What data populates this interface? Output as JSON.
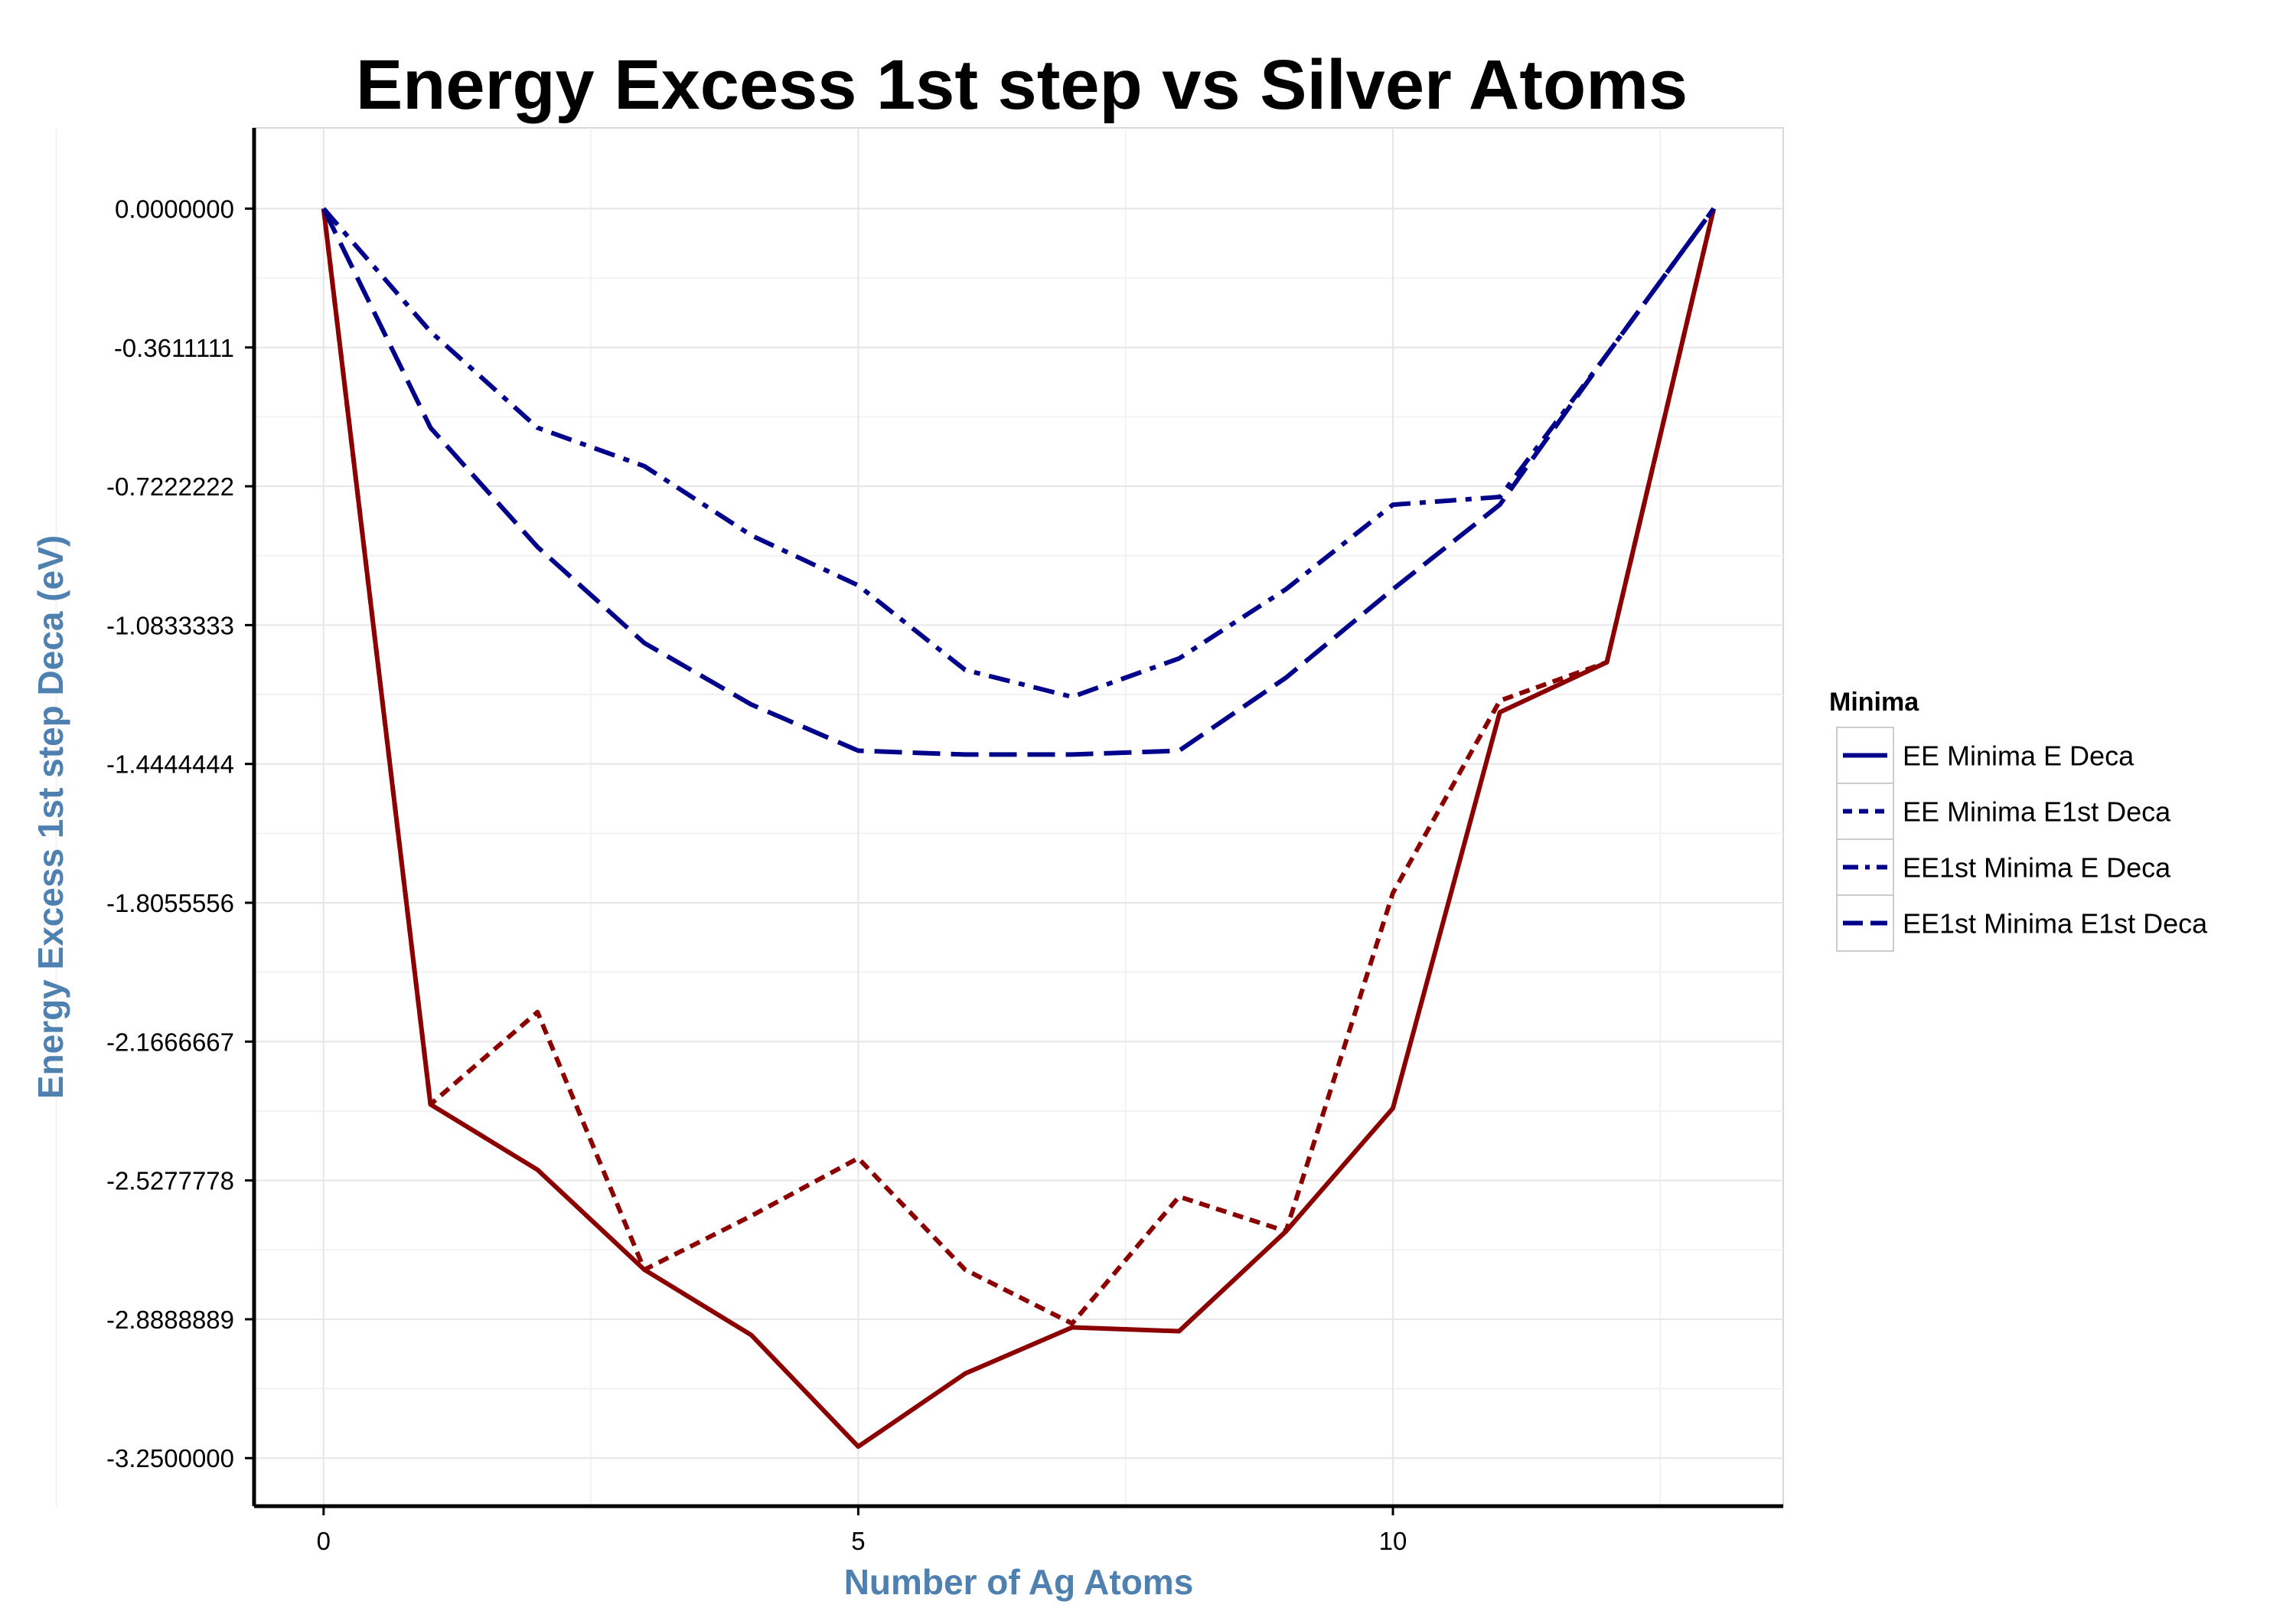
{
  "chart_data": {
    "type": "line",
    "title": "Energy Excess 1st step vs Silver Atoms",
    "xlabel": "Number of Ag Atoms",
    "ylabel": "Energy Excess 1st step Deca (eV)",
    "xlim": [
      -0.65,
      13.65
    ],
    "ylim": [
      -3.375,
      0.21
    ],
    "x_ticks": [
      0,
      5,
      10
    ],
    "x_tick_labels": [
      "0",
      "5",
      "10"
    ],
    "y_ticks": [
      0,
      -0.3611111,
      -0.7222222,
      -1.0833333,
      -1.4444444,
      -1.8055556,
      -2.1666667,
      -2.5277778,
      -2.8888889,
      -3.25
    ],
    "y_tick_labels": [
      "0.0000000",
      "-0.3611111",
      "-0.7222222",
      "-1.0833333",
      "-1.4444444",
      "-1.8055556",
      "-2.1666667",
      "-2.5277778",
      "-2.8888889",
      "-3.2500000"
    ],
    "grid": true,
    "legend_title": "Minima",
    "legend_position": "right",
    "x": [
      0,
      1,
      2,
      3,
      4,
      5,
      6,
      7,
      8,
      9,
      10,
      11,
      12,
      13
    ],
    "series": [
      {
        "name": "EE Minima E Deca",
        "color": "#8B0000",
        "dash": "solid",
        "values": [
          0,
          -2.33,
          -2.5,
          -2.76,
          -2.93,
          -3.22,
          -3.03,
          -2.91,
          -2.92,
          -2.66,
          -2.34,
          -1.31,
          -1.18,
          0
        ]
      },
      {
        "name": "EE Minima E1st Deca",
        "color": "#8B0000",
        "dash": "dotted",
        "values": [
          0,
          -2.33,
          -2.09,
          -2.76,
          -2.62,
          -2.47,
          -2.76,
          -2.9,
          -2.57,
          -2.66,
          -1.78,
          -1.28,
          -1.18,
          0
        ]
      },
      {
        "name": "EE1st Minima E Deca",
        "color": "#00008B",
        "dash": "dashdot",
        "values": [
          0,
          -0.32,
          -0.57,
          -0.67,
          -0.85,
          -0.98,
          -1.2,
          -1.27,
          -1.17,
          -0.99,
          -0.77,
          -0.75,
          -0.38,
          0
        ]
      },
      {
        "name": "EE1st Minima E1st Deca",
        "color": "#00008B",
        "dash": "longdash",
        "values": [
          0,
          -0.57,
          -0.88,
          -1.13,
          -1.29,
          -1.41,
          -1.42,
          -1.42,
          -1.41,
          -1.22,
          -0.99,
          -0.77,
          -0.38,
          0
        ]
      }
    ],
    "legend_key_color": "#00008B"
  }
}
